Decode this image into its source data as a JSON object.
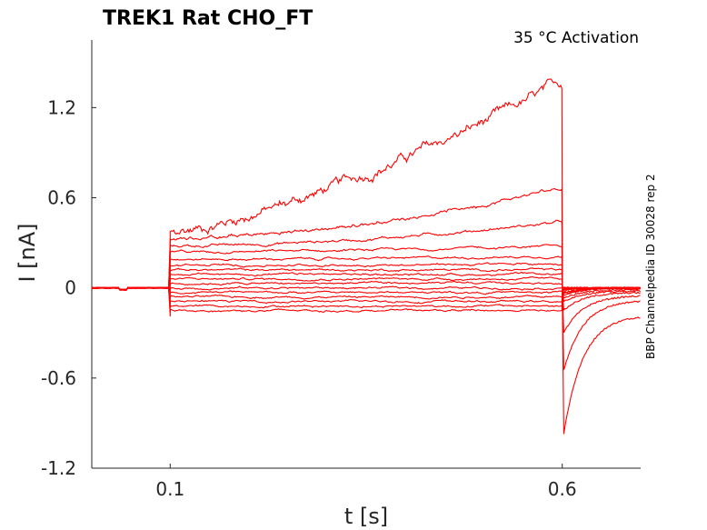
{
  "chart_data": {
    "type": "line",
    "title": "TREK1  Rat  CHO_FT",
    "annotation": "35 °C  Activation",
    "side_label": "BBP Channelpedia ID 30028 rep 2",
    "xlabel": "t [s]",
    "ylabel": "I [nA]",
    "xlim": [
      0.0,
      0.7
    ],
    "ylim": [
      -1.2,
      1.65
    ],
    "x_ticks": [
      0.1,
      0.6
    ],
    "x_tick_labels": [
      "0.1",
      "0.6"
    ],
    "y_ticks": [
      -1.2,
      -0.6,
      0,
      0.6,
      1.2
    ],
    "y_tick_labels": [
      "-1.2",
      "-0.6",
      "0",
      "0.6",
      "1.2"
    ],
    "grid": false,
    "line_color": "#ff0000",
    "step_on": 0.1,
    "step_off": 0.6,
    "traces": [
      {
        "start": 0.37,
        "end": 1.36,
        "tail_min": -0.97,
        "tail_end": -0.18
      },
      {
        "start": 0.33,
        "end": 0.67,
        "tail_min": -0.55,
        "tail_end": -0.08
      },
      {
        "start": 0.28,
        "end": 0.44,
        "tail_min": -0.3,
        "tail_end": -0.05
      },
      {
        "start": 0.24,
        "end": 0.28,
        "tail_min": -0.15,
        "tail_end": -0.03
      },
      {
        "start": 0.19,
        "end": 0.21,
        "tail_min": -0.09,
        "tail_end": -0.02
      },
      {
        "start": 0.15,
        "end": 0.16,
        "tail_min": -0.07,
        "tail_end": -0.01
      },
      {
        "start": 0.12,
        "end": 0.12,
        "tail_min": -0.05,
        "tail_end": 0.0
      },
      {
        "start": 0.09,
        "end": 0.09,
        "tail_min": -0.04,
        "tail_end": 0.0
      },
      {
        "start": 0.06,
        "end": 0.06,
        "tail_min": -0.03,
        "tail_end": 0.0
      },
      {
        "start": 0.03,
        "end": 0.03,
        "tail_min": -0.02,
        "tail_end": 0.0
      },
      {
        "start": 0.0,
        "end": 0.0,
        "tail_min": -0.01,
        "tail_end": 0.0
      },
      {
        "start": -0.03,
        "end": -0.03,
        "tail_min": -0.01,
        "tail_end": 0.0
      },
      {
        "start": -0.06,
        "end": -0.06,
        "tail_min": 0.0,
        "tail_end": 0.0
      },
      {
        "start": -0.09,
        "end": -0.09,
        "tail_min": 0.0,
        "tail_end": 0.0
      },
      {
        "start": -0.12,
        "end": -0.12,
        "tail_min": 0.0,
        "tail_end": 0.0
      },
      {
        "start": -0.15,
        "end": -0.15,
        "tail_min": 0.0,
        "tail_end": 0.0
      }
    ]
  }
}
